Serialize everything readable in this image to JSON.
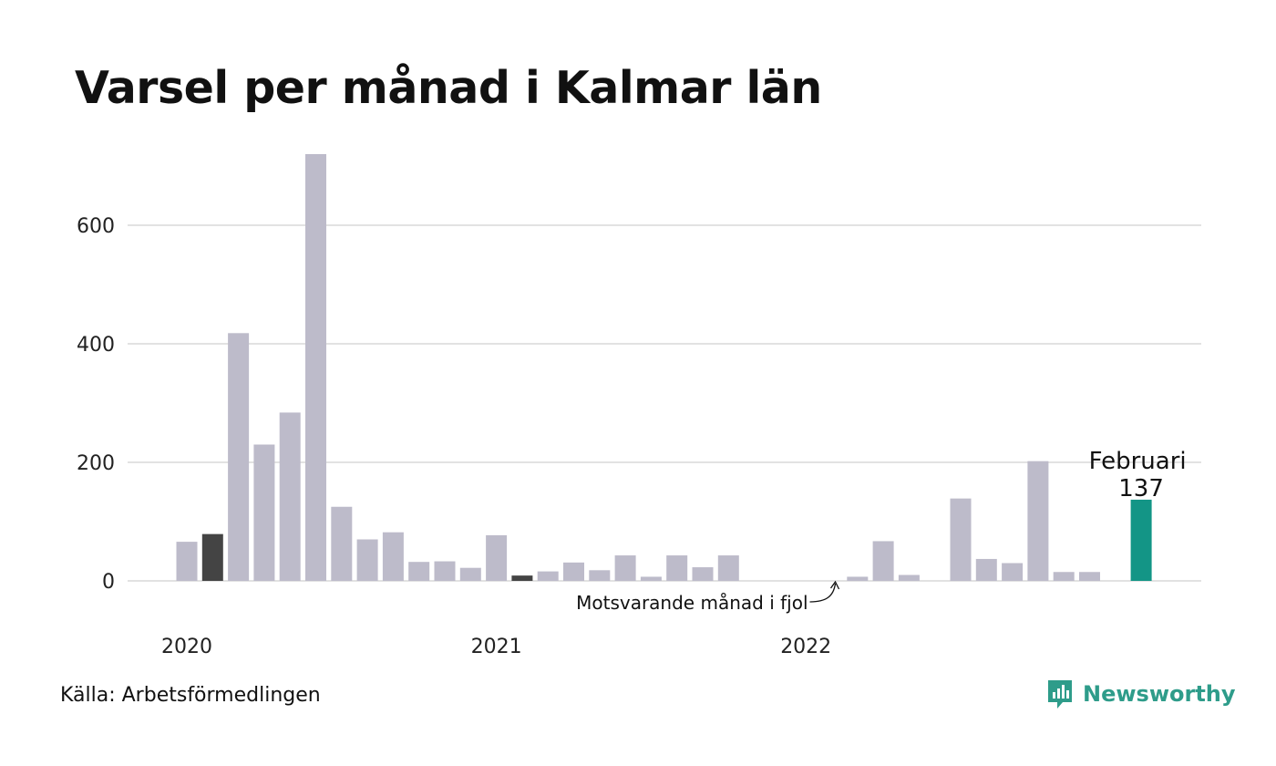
{
  "header": {
    "title": "Varsel per månad i Kalmar län"
  },
  "footer": {
    "source": "Källa: Arbetsförmedlingen",
    "brand": "Newsworthy"
  },
  "colors": {
    "bar": "#bdbbca",
    "highlight_previous_year": "#444444",
    "current": "#139586",
    "grid": "#e2e2e2",
    "brand": "#2e9c8a"
  },
  "chart_data": {
    "type": "bar",
    "title": "Varsel per månad i Kalmar län",
    "xlabel": "",
    "ylabel": "",
    "ylim": [
      0,
      720
    ],
    "yticks": [
      0,
      200,
      400,
      600
    ],
    "xtick_labels": [
      {
        "label": "2020",
        "month": "2020-01"
      },
      {
        "label": "2021",
        "month": "2021-01"
      },
      {
        "label": "2022",
        "month": "2022-01"
      }
    ],
    "grid": true,
    "months": [
      "2020-01",
      "2020-02",
      "2020-03",
      "2020-04",
      "2020-05",
      "2020-06",
      "2020-07",
      "2020-08",
      "2020-09",
      "2020-10",
      "2020-11",
      "2020-12",
      "2021-01",
      "2021-02",
      "2021-03",
      "2021-04",
      "2021-05",
      "2021-06",
      "2021-07",
      "2021-08",
      "2021-09",
      "2021-10",
      "2021-11",
      "2021-12",
      "2022-01",
      "2022-02",
      "2022-03",
      "2022-04",
      "2022-05",
      "2022-06",
      "2022-07",
      "2022-08",
      "2022-09",
      "2022-10",
      "2022-11",
      "2022-12",
      "2023-01",
      "2023-02"
    ],
    "values": [
      66,
      79,
      418,
      230,
      284,
      720,
      125,
      70,
      82,
      32,
      33,
      22,
      77,
      9,
      16,
      31,
      18,
      43,
      7,
      43,
      23,
      43,
      0,
      0,
      0,
      0,
      7,
      67,
      10,
      0,
      139,
      37,
      30,
      202,
      15,
      15,
      0,
      137
    ],
    "highlights": [
      {
        "month": "2020-02",
        "role": "previous_year"
      },
      {
        "month": "2021-02",
        "role": "previous_year"
      },
      {
        "month": "2023-02",
        "role": "current"
      }
    ],
    "annotations": {
      "current_label": "Februari",
      "current_value": "137",
      "previous_year_note": "Motsvarande månad i fjol"
    }
  }
}
